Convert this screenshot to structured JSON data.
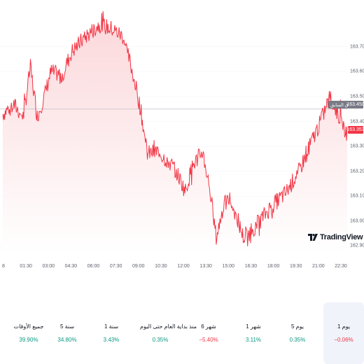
{
  "chart_data": {
    "type": "area",
    "y_ticks": [
      163.7,
      163.6,
      163.5,
      163.4,
      163.3,
      163.2,
      163.1,
      163.0,
      162.9
    ],
    "y_tick_labels": [
      "163.700",
      "163.600",
      "163.500",
      "163.400",
      "163.300",
      "163.200",
      "163.100",
      "163.000",
      "162.900"
    ],
    "x_tick_labels": [
      "8",
      "01:30",
      "03:00",
      "04:30",
      "06:00",
      "07:30",
      "09:00",
      "10:30",
      "12:00",
      "13:30",
      "15:00",
      "16:30",
      "18:00",
      "19:30",
      "21:00",
      "22:30"
    ],
    "ylim": [
      162.87,
      163.86
    ],
    "series": [
      {
        "x": [
          0,
          0.03,
          0.06,
          0.08,
          0.1,
          0.12,
          0.14,
          0.17,
          0.2,
          0.24,
          0.28,
          0.32,
          0.35,
          0.38,
          0.4,
          0.42,
          0.45,
          0.5,
          0.53,
          0.55,
          0.58,
          0.6,
          0.62,
          0.64,
          0.66,
          0.7,
          0.74,
          0.78,
          0.82,
          0.86,
          0.9,
          0.92,
          0.95,
          1.0
        ],
        "values": [
          163.43,
          163.47,
          163.42,
          163.62,
          163.42,
          163.5,
          163.6,
          163.58,
          163.68,
          163.74,
          163.79,
          163.77,
          163.74,
          163.58,
          163.45,
          163.27,
          163.28,
          163.21,
          163.12,
          163.22,
          163.28,
          163.14,
          162.93,
          163.06,
          163.09,
          162.93,
          162.99,
          163.06,
          163.11,
          163.2,
          163.33,
          163.39,
          163.5,
          163.35
        ]
      }
    ],
    "colors": {
      "line": "#f23645",
      "fill_top": "#fbd7da",
      "fill_bottom": "#ffffff",
      "grid": "#f0f3fa"
    }
  },
  "chart": {
    "last_price": "163.353",
    "prev_close_price": "163.450",
    "prev_close_label": "الإغلاق السابق",
    "last_price_color": "#f23645",
    "prev_close_color": "#787b86"
  },
  "brand": {
    "name": "TradingView"
  },
  "periods": [
    {
      "label": "1 يوم",
      "change": "−0.06%",
      "direction": "down",
      "active": true
    },
    {
      "label": "5 يوم",
      "change": "0.35%",
      "direction": "up",
      "active": false
    },
    {
      "label": "1 شهر",
      "change": "3.11%",
      "direction": "up",
      "active": false
    },
    {
      "label": "6 شهر",
      "change": "−5.40%",
      "direction": "down",
      "active": false
    },
    {
      "label": "منذ بداية العام حتى اليوم",
      "change": "0.35%",
      "direction": "up",
      "active": false
    },
    {
      "label": "1 سنة",
      "change": "3.43%",
      "direction": "up",
      "active": false
    },
    {
      "label": "5 سنة",
      "change": "34.80%",
      "direction": "up",
      "active": false
    },
    {
      "label": "جميع الأوقات",
      "change": "39.90%",
      "direction": "up",
      "active": false
    }
  ]
}
